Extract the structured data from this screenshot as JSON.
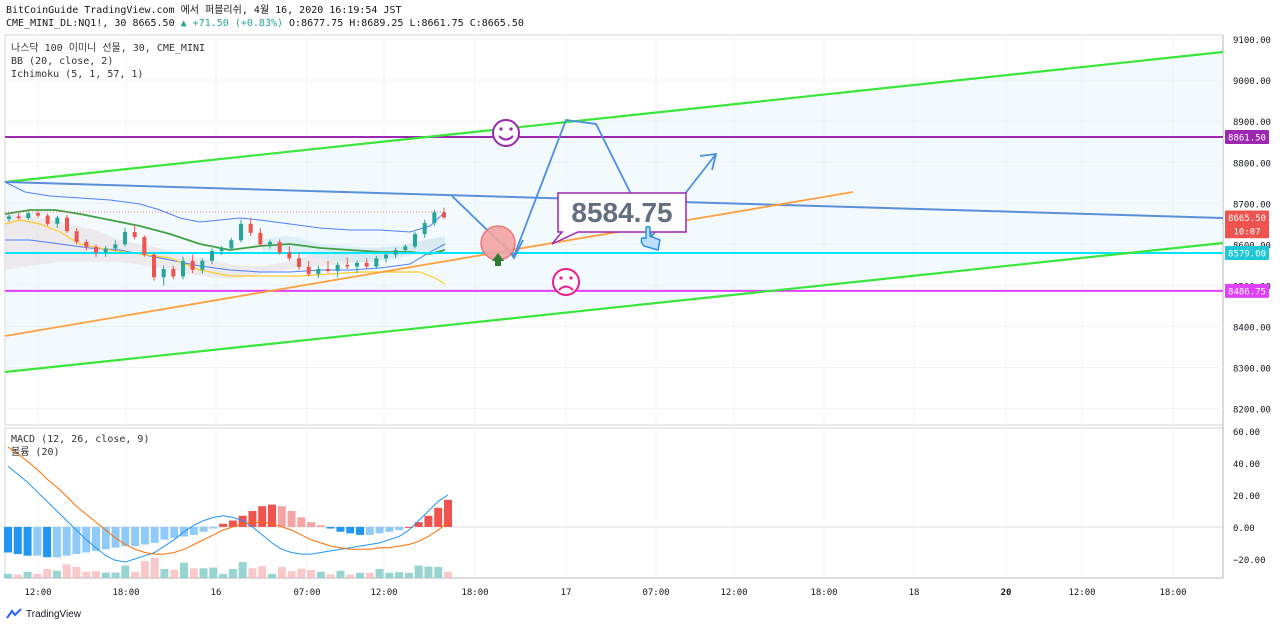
{
  "header": {
    "line1": "BitCoinGuide TradingView.com 에서 퍼블리쉬, 4월 16, 2020 16:19:54 JST",
    "symbol": "CME_MINI_DL:NQ1!, 30",
    "last": "8665.50",
    "change": "▲ +71.50 (+0.83%)",
    "open": "O:8677.75",
    "high": "H:8689.25",
    "low": "L:8661.75",
    "close": "C:8665.50"
  },
  "legend": {
    "title": "나스닥 100 이미니 선물, 30, CME_MINI",
    "bb": "BB (20, close, 2)",
    "ichimoku": "Ichimoku (5, 1, 57, 1)",
    "macd": "MACD (12, 26, close, 9)",
    "bollinger_width": "볼륨 (20)"
  },
  "annotations": {
    "price_box": "8584.75",
    "smiley_good": "☺",
    "smiley_bad": "☹"
  },
  "price_axis": {
    "ticks": [
      "9100.00",
      "9000.00",
      "8900.00",
      "8800.00",
      "8700.00",
      "8600.00",
      "8500.00",
      "8400.00",
      "8300.00",
      "8200.00"
    ],
    "tick_values": [
      9100,
      9000,
      8900,
      8800,
      8700,
      8600,
      8500,
      8400,
      8300,
      8200
    ],
    "labels": [
      {
        "text": "8861.50",
        "value": 8861.5,
        "color": "#9c27b0"
      },
      {
        "text": "8665.50",
        "value": 8665.5,
        "color": "#ef5350"
      },
      {
        "text": "10:07",
        "value": 8632,
        "color": "#ef5350"
      },
      {
        "text": "8579.00",
        "value": 8579,
        "color": "#1ec8d8"
      },
      {
        "text": "8486.75",
        "value": 8486.75,
        "color": "#e040fb"
      }
    ]
  },
  "macd_axis": {
    "ticks": [
      "60.00",
      "40.00",
      "20.00",
      "0.00",
      "−20.00"
    ],
    "tick_values": [
      60,
      40,
      20,
      0,
      -20
    ]
  },
  "time_axis": {
    "labels": [
      "12:00",
      "18:00",
      "16",
      "07:00",
      "12:00",
      "18:00",
      "17",
      "07:00",
      "12:00",
      "18:00",
      "18",
      "20",
      "12:00",
      "18:00"
    ],
    "bold": [
      false,
      false,
      false,
      false,
      false,
      false,
      false,
      false,
      false,
      false,
      false,
      true,
      false,
      false
    ]
  },
  "footer": {
    "brand": "TradingView"
  },
  "chart_data": {
    "type": "candlestick",
    "ylim": [
      8160,
      9110
    ],
    "macd_ylim": [
      -32,
      62
    ],
    "horizontal_levels": [
      {
        "value": 8861.5,
        "color": "#9c27b0"
      },
      {
        "value": 8579,
        "color": "#00e5ff"
      },
      {
        "value": 8486.75,
        "color": "#e040fb"
      }
    ],
    "candles": [
      {
        "o": 8662,
        "h": 8672,
        "l": 8655,
        "c": 8668
      },
      {
        "o": 8668,
        "h": 8676,
        "l": 8660,
        "c": 8664
      },
      {
        "o": 8664,
        "h": 8680,
        "l": 8660,
        "c": 8676
      },
      {
        "o": 8676,
        "h": 8684,
        "l": 8665,
        "c": 8670
      },
      {
        "o": 8670,
        "h": 8675,
        "l": 8645,
        "c": 8650
      },
      {
        "o": 8650,
        "h": 8670,
        "l": 8640,
        "c": 8665
      },
      {
        "o": 8665,
        "h": 8672,
        "l": 8628,
        "c": 8632
      },
      {
        "o": 8632,
        "h": 8640,
        "l": 8600,
        "c": 8606
      },
      {
        "o": 8606,
        "h": 8612,
        "l": 8585,
        "c": 8594
      },
      {
        "o": 8594,
        "h": 8600,
        "l": 8570,
        "c": 8580
      },
      {
        "o": 8580,
        "h": 8596,
        "l": 8570,
        "c": 8590
      },
      {
        "o": 8590,
        "h": 8610,
        "l": 8582,
        "c": 8600
      },
      {
        "o": 8600,
        "h": 8640,
        "l": 8595,
        "c": 8630
      },
      {
        "o": 8630,
        "h": 8648,
        "l": 8612,
        "c": 8618
      },
      {
        "o": 8618,
        "h": 8622,
        "l": 8570,
        "c": 8575
      },
      {
        "o": 8575,
        "h": 8578,
        "l": 8512,
        "c": 8520
      },
      {
        "o": 8520,
        "h": 8548,
        "l": 8500,
        "c": 8540
      },
      {
        "o": 8540,
        "h": 8548,
        "l": 8515,
        "c": 8522
      },
      {
        "o": 8522,
        "h": 8570,
        "l": 8515,
        "c": 8560
      },
      {
        "o": 8560,
        "h": 8575,
        "l": 8530,
        "c": 8538
      },
      {
        "o": 8538,
        "h": 8566,
        "l": 8528,
        "c": 8560
      },
      {
        "o": 8560,
        "h": 8590,
        "l": 8552,
        "c": 8584
      },
      {
        "o": 8584,
        "h": 8596,
        "l": 8574,
        "c": 8590
      },
      {
        "o": 8590,
        "h": 8616,
        "l": 8586,
        "c": 8610
      },
      {
        "o": 8610,
        "h": 8660,
        "l": 8605,
        "c": 8650
      },
      {
        "o": 8650,
        "h": 8665,
        "l": 8620,
        "c": 8628
      },
      {
        "o": 8628,
        "h": 8640,
        "l": 8595,
        "c": 8600
      },
      {
        "o": 8600,
        "h": 8612,
        "l": 8590,
        "c": 8606
      },
      {
        "o": 8606,
        "h": 8612,
        "l": 8575,
        "c": 8580
      },
      {
        "o": 8580,
        "h": 8595,
        "l": 8560,
        "c": 8566
      },
      {
        "o": 8566,
        "h": 8580,
        "l": 8538,
        "c": 8545
      },
      {
        "o": 8545,
        "h": 8560,
        "l": 8522,
        "c": 8528
      },
      {
        "o": 8528,
        "h": 8548,
        "l": 8518,
        "c": 8540
      },
      {
        "o": 8540,
        "h": 8560,
        "l": 8530,
        "c": 8535
      },
      {
        "o": 8535,
        "h": 8556,
        "l": 8520,
        "c": 8550
      },
      {
        "o": 8550,
        "h": 8568,
        "l": 8540,
        "c": 8546
      },
      {
        "o": 8546,
        "h": 8560,
        "l": 8530,
        "c": 8555
      },
      {
        "o": 8555,
        "h": 8566,
        "l": 8540,
        "c": 8546
      },
      {
        "o": 8546,
        "h": 8572,
        "l": 8540,
        "c": 8566
      },
      {
        "o": 8566,
        "h": 8580,
        "l": 8556,
        "c": 8575
      },
      {
        "o": 8575,
        "h": 8592,
        "l": 8566,
        "c": 8586
      },
      {
        "o": 8586,
        "h": 8600,
        "l": 8578,
        "c": 8595
      },
      {
        "o": 8595,
        "h": 8630,
        "l": 8590,
        "c": 8625
      },
      {
        "o": 8625,
        "h": 8660,
        "l": 8616,
        "c": 8652
      },
      {
        "o": 8652,
        "h": 8684,
        "l": 8645,
        "c": 8678
      },
      {
        "o": 8677.75,
        "h": 8689.25,
        "l": 8661.75,
        "c": 8665.5
      }
    ],
    "macd_hist": [
      -16,
      -17,
      -18,
      -18,
      -19,
      -19,
      -18,
      -17,
      -16,
      -15,
      -14,
      -13,
      -12,
      -12,
      -11,
      -10,
      -8,
      -7,
      -6,
      -5,
      -3,
      -1,
      2,
      4,
      7,
      10,
      13,
      14,
      13,
      10,
      6,
      3,
      1,
      -1,
      -3,
      -4,
      -5,
      -5,
      -4,
      -3,
      -2,
      0,
      3,
      7,
      12,
      17
    ],
    "macd_line": [
      38,
      33,
      28,
      22,
      16,
      10,
      4,
      -2,
      -8,
      -13,
      -18,
      -21,
      -22,
      -20,
      -18,
      -16,
      -12,
      -8,
      -3,
      1,
      4,
      6,
      7,
      6,
      4,
      0,
      -5,
      -10,
      -14,
      -16,
      -17,
      -17,
      -16,
      -15,
      -14,
      -13,
      -12,
      -11,
      -10,
      -8,
      -6,
      -2,
      4,
      10,
      16,
      20
    ],
    "signal_line": [
      50,
      46,
      41,
      36,
      30,
      25,
      19,
      13,
      8,
      3,
      -2,
      -7,
      -11,
      -14,
      -16,
      -17,
      -17,
      -16,
      -14,
      -11,
      -8,
      -5,
      -2,
      0,
      2,
      3,
      3,
      2,
      0,
      -2,
      -5,
      -8,
      -10,
      -12,
      -13,
      -14,
      -14,
      -14,
      -13,
      -13,
      -12,
      -11,
      -9,
      -6,
      -2,
      3
    ]
  }
}
